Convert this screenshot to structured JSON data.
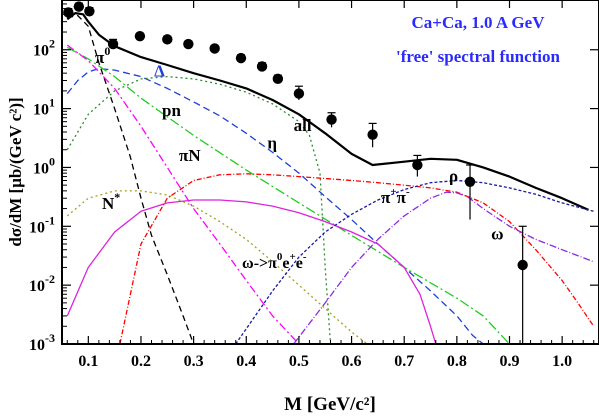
{
  "chart_data": {
    "type": "line",
    "title": "Ca+Ca,  1.0 A GeV",
    "subtitle": "'free' spectral function",
    "xlabel": "M [GeV/c²]",
    "ylabel": "dσ/dM  [μb/(GeV c²)]",
    "xlim": [
      0.05,
      1.07
    ],
    "ylim": [
      0.001,
      700
    ],
    "yscale": "log",
    "x_ticks": [
      {
        "v": 0.1,
        "label": "0.1"
      },
      {
        "v": 0.2,
        "label": "0.2"
      },
      {
        "v": 0.3,
        "label": "0.3"
      },
      {
        "v": 0.4,
        "label": "0.4"
      },
      {
        "v": 0.5,
        "label": "0.5"
      },
      {
        "v": 0.6,
        "label": "0.6"
      },
      {
        "v": 0.7,
        "label": "0.7"
      },
      {
        "v": 0.8,
        "label": "0.8"
      },
      {
        "v": 0.9,
        "label": "0.9"
      },
      {
        "v": 1.0,
        "label": "1.0"
      }
    ],
    "y_ticks": [
      {
        "v": 0.001,
        "base": "10",
        "exp": "-3"
      },
      {
        "v": 0.01,
        "base": "10",
        "exp": "-2"
      },
      {
        "v": 0.1,
        "base": "10",
        "exp": "-1"
      },
      {
        "v": 1,
        "base": "10",
        "exp": "0"
      },
      {
        "v": 10,
        "base": "10",
        "exp": "1"
      },
      {
        "v": 100,
        "base": "10",
        "exp": "2"
      }
    ],
    "series": [
      {
        "name": "all",
        "color": "#000000",
        "dash": "solid",
        "width": 2.2,
        "points": [
          [
            0.06,
            330
          ],
          [
            0.075,
            420
          ],
          [
            0.09,
            400
          ],
          [
            0.1,
            300
          ],
          [
            0.12,
            180
          ],
          [
            0.15,
            115
          ],
          [
            0.2,
            75
          ],
          [
            0.25,
            55
          ],
          [
            0.3,
            40
          ],
          [
            0.35,
            30
          ],
          [
            0.4,
            22
          ],
          [
            0.45,
            14
          ],
          [
            0.5,
            8
          ],
          [
            0.55,
            3.8
          ],
          [
            0.6,
            1.7
          ],
          [
            0.64,
            1.1
          ],
          [
            0.7,
            1.25
          ],
          [
            0.75,
            1.4
          ],
          [
            0.8,
            1.35
          ],
          [
            0.85,
            1.0
          ],
          [
            0.9,
            0.7
          ],
          [
            0.95,
            0.45
          ],
          [
            1.0,
            0.3
          ],
          [
            1.05,
            0.19
          ]
        ]
      },
      {
        "name": "π⁰",
        "color": "#000000",
        "dash": "6,4",
        "width": 1.3,
        "points": [
          [
            0.06,
            350
          ],
          [
            0.08,
            380
          ],
          [
            0.1,
            250
          ],
          [
            0.12,
            60
          ],
          [
            0.15,
            10
          ],
          [
            0.18,
            1.5
          ],
          [
            0.2,
            0.3
          ],
          [
            0.22,
            0.07
          ],
          [
            0.25,
            0.015
          ],
          [
            0.28,
            0.003
          ],
          [
            0.3,
            0.001
          ]
        ]
      },
      {
        "name": "Δ",
        "color": "#1f3fd8",
        "dash": "7,4",
        "width": 1.3,
        "points": [
          [
            0.06,
            18
          ],
          [
            0.08,
            30
          ],
          [
            0.1,
            42
          ],
          [
            0.12,
            48
          ],
          [
            0.15,
            45
          ],
          [
            0.2,
            35
          ],
          [
            0.25,
            22
          ],
          [
            0.3,
            13
          ],
          [
            0.35,
            7.5
          ],
          [
            0.4,
            3.8
          ],
          [
            0.45,
            1.8
          ],
          [
            0.5,
            0.8
          ],
          [
            0.55,
            0.32
          ],
          [
            0.6,
            0.13
          ],
          [
            0.65,
            0.05
          ],
          [
            0.7,
            0.02
          ],
          [
            0.75,
            0.008
          ],
          [
            0.8,
            0.003
          ],
          [
            0.83,
            0.0014
          ],
          [
            0.85,
            0.001
          ]
        ]
      },
      {
        "name": "pn",
        "color": "#22cc22",
        "dash": "10,3,2,3",
        "width": 1.3,
        "points": [
          [
            0.06,
            110
          ],
          [
            0.1,
            70
          ],
          [
            0.15,
            35
          ],
          [
            0.2,
            15
          ],
          [
            0.3,
            3.5
          ],
          [
            0.4,
            0.9
          ],
          [
            0.5,
            0.25
          ],
          [
            0.6,
            0.07
          ],
          [
            0.7,
            0.02
          ],
          [
            0.8,
            0.006
          ],
          [
            0.85,
            0.003
          ],
          [
            0.9,
            0.001
          ]
        ]
      },
      {
        "name": "η",
        "color": "#2e8b2e",
        "dash": "2,3",
        "width": 1.3,
        "points": [
          [
            0.06,
            2
          ],
          [
            0.1,
            8
          ],
          [
            0.15,
            20
          ],
          [
            0.2,
            32
          ],
          [
            0.25,
            35
          ],
          [
            0.3,
            32
          ],
          [
            0.35,
            26
          ],
          [
            0.4,
            19
          ],
          [
            0.45,
            12
          ],
          [
            0.5,
            6
          ],
          [
            0.52,
            3.5
          ],
          [
            0.54,
            0.8
          ],
          [
            0.55,
            0.02
          ],
          [
            0.56,
            0.001
          ]
        ]
      },
      {
        "name": "πN",
        "color": "#ff00ff",
        "dash": "8,3,2,3",
        "width": 1.3,
        "points": [
          [
            0.06,
            120
          ],
          [
            0.1,
            65
          ],
          [
            0.15,
            22
          ],
          [
            0.2,
            5
          ],
          [
            0.25,
            1.0
          ],
          [
            0.3,
            0.2
          ],
          [
            0.35,
            0.05
          ],
          [
            0.4,
            0.012
          ],
          [
            0.45,
            0.003
          ],
          [
            0.5,
            0.001
          ]
        ]
      },
      {
        "name": "N*",
        "color": "#a8a020",
        "dash": "2,3",
        "width": 1.3,
        "points": [
          [
            0.06,
            0.15
          ],
          [
            0.1,
            0.3
          ],
          [
            0.15,
            0.4
          ],
          [
            0.2,
            0.4
          ],
          [
            0.25,
            0.34
          ],
          [
            0.3,
            0.22
          ],
          [
            0.35,
            0.12
          ],
          [
            0.4,
            0.06
          ],
          [
            0.45,
            0.025
          ],
          [
            0.5,
            0.01
          ],
          [
            0.55,
            0.004
          ],
          [
            0.6,
            0.0016
          ],
          [
            0.63,
            0.001
          ]
        ]
      },
      {
        "name": "ω→π⁰e⁺e⁻",
        "color": "#dd22dd",
        "dash": "solid",
        "width": 1.3,
        "points": [
          [
            0.06,
            0.003
          ],
          [
            0.1,
            0.02
          ],
          [
            0.15,
            0.08
          ],
          [
            0.2,
            0.18
          ],
          [
            0.25,
            0.25
          ],
          [
            0.3,
            0.28
          ],
          [
            0.35,
            0.28
          ],
          [
            0.4,
            0.26
          ],
          [
            0.45,
            0.22
          ],
          [
            0.5,
            0.17
          ],
          [
            0.55,
            0.12
          ],
          [
            0.6,
            0.08
          ],
          [
            0.65,
            0.05
          ],
          [
            0.7,
            0.02
          ],
          [
            0.73,
            0.007
          ],
          [
            0.75,
            0.002
          ],
          [
            0.76,
            0.001
          ]
        ]
      },
      {
        "name": "ππ",
        "color": "#ff0000",
        "dash": "5,2,1,2",
        "width": 1.3,
        "points": [
          [
            0.16,
            0.001
          ],
          [
            0.2,
            0.05
          ],
          [
            0.25,
            0.3
          ],
          [
            0.3,
            0.6
          ],
          [
            0.35,
            0.75
          ],
          [
            0.4,
            0.78
          ],
          [
            0.45,
            0.75
          ],
          [
            0.5,
            0.7
          ],
          [
            0.55,
            0.65
          ],
          [
            0.6,
            0.6
          ],
          [
            0.65,
            0.55
          ],
          [
            0.7,
            0.5
          ],
          [
            0.75,
            0.45
          ],
          [
            0.8,
            0.38
          ],
          [
            0.85,
            0.25
          ],
          [
            0.9,
            0.12
          ],
          [
            0.95,
            0.04
          ],
          [
            1.0,
            0.012
          ],
          [
            1.03,
            0.005
          ],
          [
            1.06,
            0.002
          ]
        ]
      },
      {
        "name": "ρ",
        "color": "#1a1aa0",
        "dash": "3,2",
        "width": 1.3,
        "points": [
          [
            0.38,
            0.001
          ],
          [
            0.45,
            0.008
          ],
          [
            0.5,
            0.03
          ],
          [
            0.55,
            0.08
          ],
          [
            0.6,
            0.16
          ],
          [
            0.65,
            0.28
          ],
          [
            0.7,
            0.42
          ],
          [
            0.75,
            0.55
          ],
          [
            0.8,
            0.6
          ],
          [
            0.85,
            0.55
          ],
          [
            0.9,
            0.45
          ],
          [
            0.95,
            0.35
          ],
          [
            1.0,
            0.25
          ],
          [
            1.06,
            0.18
          ]
        ]
      },
      {
        "name": "ω",
        "color": "#8a2be2",
        "dash": "7,2,1,2",
        "width": 1.3,
        "points": [
          [
            0.49,
            0.001
          ],
          [
            0.55,
            0.005
          ],
          [
            0.6,
            0.02
          ],
          [
            0.65,
            0.06
          ],
          [
            0.7,
            0.15
          ],
          [
            0.75,
            0.3
          ],
          [
            0.78,
            0.38
          ],
          [
            0.8,
            0.37
          ],
          [
            0.82,
            0.32
          ],
          [
            0.85,
            0.2
          ],
          [
            0.9,
            0.1
          ],
          [
            0.95,
            0.06
          ],
          [
            1.0,
            0.04
          ],
          [
            1.06,
            0.025
          ]
        ]
      }
    ],
    "data_points": [
      {
        "x": 0.062,
        "y": 430,
        "lo": 370,
        "hi": 500
      },
      {
        "x": 0.082,
        "y": 540,
        "lo": 470,
        "hi": 620
      },
      {
        "x": 0.102,
        "y": 450,
        "lo": 390,
        "hi": 520
      },
      {
        "x": 0.147,
        "y": 125,
        "lo": 105,
        "hi": 150
      },
      {
        "x": 0.198,
        "y": 170,
        "lo": 150,
        "hi": 190
      },
      {
        "x": 0.25,
        "y": 150,
        "lo": 130,
        "hi": 170
      },
      {
        "x": 0.29,
        "y": 125,
        "lo": 110,
        "hi": 140
      },
      {
        "x": 0.34,
        "y": 105,
        "lo": 93,
        "hi": 118
      },
      {
        "x": 0.39,
        "y": 72,
        "lo": 63,
        "hi": 82
      },
      {
        "x": 0.43,
        "y": 52,
        "lo": 45,
        "hi": 60
      },
      {
        "x": 0.46,
        "y": 32,
        "lo": 28,
        "hi": 37
      },
      {
        "x": 0.5,
        "y": 18,
        "lo": 14,
        "hi": 24
      },
      {
        "x": 0.562,
        "y": 6.5,
        "lo": 4.8,
        "hi": 8.5
      },
      {
        "x": 0.64,
        "y": 3.6,
        "lo": 2.2,
        "hi": 5.6
      },
      {
        "x": 0.725,
        "y": 1.1,
        "lo": 0.7,
        "hi": 1.6
      },
      {
        "x": 0.825,
        "y": 0.57,
        "lo": 0.13,
        "hi": 1.1
      },
      {
        "x": 0.925,
        "y": 0.022,
        "lo": 0.001,
        "hi": 0.1
      }
    ],
    "labels": [
      {
        "text": "all",
        "x": 0.49,
        "y": 4.2,
        "color": "#000000"
      },
      {
        "text": "Δ",
        "x": 0.225,
        "y": 35,
        "color": "#1f3fd8"
      },
      {
        "text": "pn",
        "x": 0.24,
        "y": 7.5,
        "color": "#000000"
      },
      {
        "text": "η",
        "x": 0.44,
        "y": 2.1,
        "color": "#000000"
      },
      {
        "text": "ρ",
        "x": 0.785,
        "y": 0.58,
        "color": "#000000"
      },
      {
        "text": "ω",
        "x": 0.865,
        "y": 0.06,
        "color": "#000000"
      }
    ]
  }
}
